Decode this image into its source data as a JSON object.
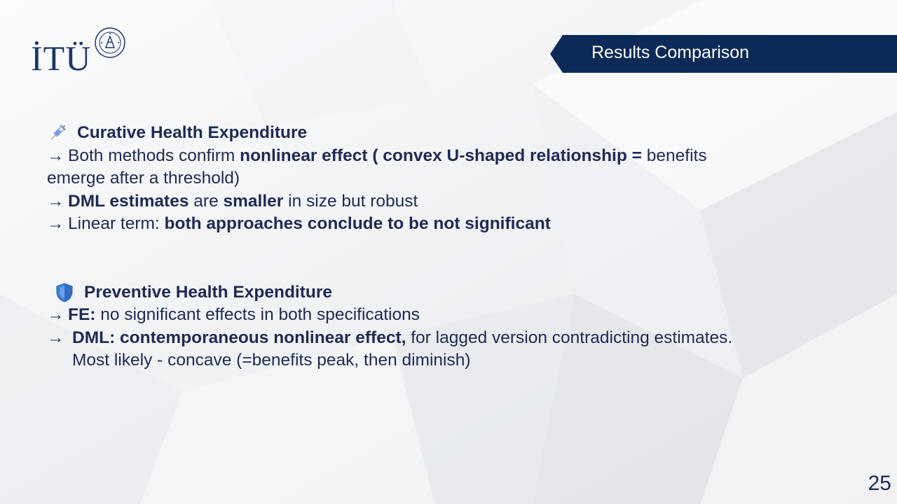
{
  "logo": {
    "text": "İTÜ"
  },
  "header": {
    "title": "Results Comparison"
  },
  "colors": {
    "navy": "#0b2a57",
    "text": "#1e2a52"
  },
  "sections": [
    {
      "icon": "syringe-icon",
      "heading": "Curative Health Expenditure",
      "bullets": [
        {
          "arrow": "→",
          "parts": [
            {
              "t": "Both methods confirm ",
              "b": false
            },
            {
              "t": "nonlinear effect ( convex U-shaped relationship =",
              "b": true
            },
            {
              "t": " benefits emerge after a threshold)",
              "b": false
            }
          ]
        },
        {
          "arrow": "→",
          "parts": [
            {
              "t": "DML estimates",
              "b": true
            },
            {
              "t": " are ",
              "b": false
            },
            {
              "t": "smaller",
              "b": true
            },
            {
              "t": " in size but robust",
              "b": false
            }
          ]
        },
        {
          "arrow": "→",
          "parts": [
            {
              "t": "Linear term: ",
              "b": false
            },
            {
              "t": "both approaches conclude to be not significant",
              "b": true
            }
          ]
        }
      ]
    },
    {
      "icon": "shield-icon",
      "heading": "Preventive Health Expenditure",
      "bullets": [
        {
          "arrow": "→",
          "parts": [
            {
              "t": "FE:",
              "b": true
            },
            {
              "t": " no significant effects in both specifications",
              "b": false
            }
          ]
        },
        {
          "arrow": "→",
          "parts": [
            {
              "t": "DML: contemporaneous nonlinear effect,",
              "b": true
            },
            {
              "t": " for lagged version contradicting estimates. Most likely - concave (=benefits peak, then diminish)",
              "b": false
            }
          ]
        }
      ]
    }
  ],
  "footer": {
    "page_number": "25"
  }
}
